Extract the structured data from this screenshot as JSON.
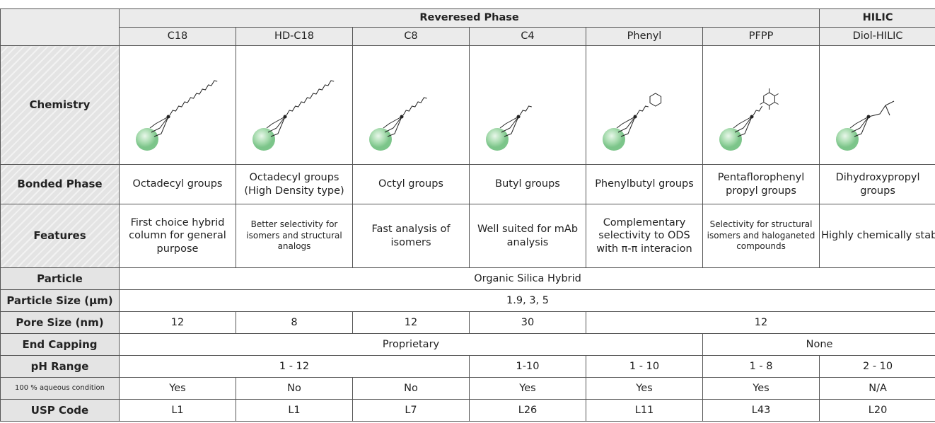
{
  "table": {
    "group_headers": [
      "Reveresed Phase",
      "HILIC"
    ],
    "columns": [
      "C18",
      "HD-C18",
      "C8",
      "C4",
      "Phenyl",
      "PFPP",
      "Diol-HILIC"
    ],
    "rows": [
      {
        "label": "Chemistry"
      },
      {
        "label": "Bonded Phase",
        "cells": [
          "Octadecyl groups",
          "Octadecyl groups (High Density type)",
          "Octyl groups",
          "Butyl groups",
          "Phenylbutyl groups",
          "Pentaflorophenyl propyl groups",
          "Dihydroxypropyl groups"
        ]
      },
      {
        "label": "Features",
        "cells": [
          "First choice hybrid column for general purpose",
          "Better selectivity for isomers and structural analogs",
          "Fast analysis of isomers",
          "Well suited for mAb analysis",
          "Complementary selectivity to ODS with π-π interacion",
          "Selectivity for structural isomers and haloganeted compounds",
          "Highly chemically stable HILIC column"
        ]
      },
      {
        "label": "Particle",
        "cells": [
          "Organic Silica Hybrid"
        ]
      },
      {
        "label": "Particle Size (μm)",
        "cells": [
          "1.9, 3, 5"
        ]
      },
      {
        "label": "Pore Size (nm)",
        "cells": [
          "12",
          "8",
          "12",
          "30",
          "12"
        ]
      },
      {
        "label": "End Capping",
        "cells": [
          "Proprietary",
          "None"
        ]
      },
      {
        "label": "pH Range",
        "cells": [
          "1 - 12",
          "1-10",
          "1 - 10",
          "1 - 8",
          "2 - 10"
        ]
      },
      {
        "label": "100 % aqueous condition",
        "cells": [
          "Yes",
          "No",
          "No",
          "Yes",
          "Yes",
          "Yes",
          "N/A"
        ]
      },
      {
        "label": "USP Code",
        "cells": [
          "L1",
          "L1",
          "L7",
          "L26",
          "L11",
          "L43",
          "L20"
        ]
      }
    ]
  }
}
